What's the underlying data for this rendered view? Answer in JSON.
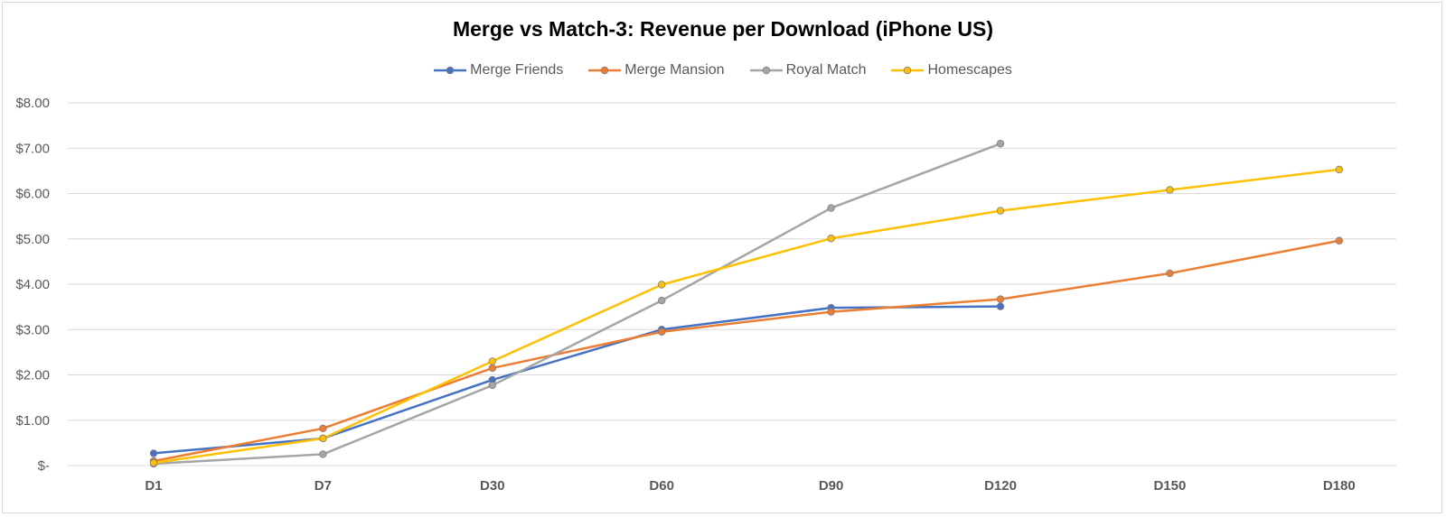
{
  "chart_data": {
    "type": "line",
    "title": "Merge vs Match-3: Revenue per Download (iPhone US)",
    "xlabel": "",
    "ylabel": "",
    "categories": [
      "D1",
      "D7",
      "D30",
      "D60",
      "D90",
      "D120",
      "D150",
      "D180"
    ],
    "ylim": [
      0,
      8
    ],
    "yticks": [
      0,
      1,
      2,
      3,
      4,
      5,
      6,
      7,
      8
    ],
    "ytick_labels": [
      "$-",
      "$1.00",
      "$2.00",
      "$3.00",
      "$4.00",
      "$5.00",
      "$6.00",
      "$7.00",
      "$8.00"
    ],
    "grid": true,
    "legend_position": "top",
    "series": [
      {
        "name": "Merge Friends",
        "color": "#4472C4",
        "values": [
          0.27,
          0.6,
          1.89,
          3.0,
          3.48,
          3.51,
          null,
          null
        ]
      },
      {
        "name": "Merge Mansion",
        "color": "#ED7D31",
        "values": [
          0.1,
          0.82,
          2.15,
          2.95,
          3.39,
          3.67,
          4.24,
          4.96
        ]
      },
      {
        "name": "Royal Match",
        "color": "#A5A5A5",
        "values": [
          0.04,
          0.25,
          1.77,
          3.64,
          5.68,
          7.1,
          null,
          null
        ]
      },
      {
        "name": "Homescapes",
        "color": "#FFC000",
        "values": [
          0.06,
          0.6,
          2.3,
          3.99,
          5.01,
          5.62,
          6.08,
          6.53
        ]
      }
    ]
  }
}
